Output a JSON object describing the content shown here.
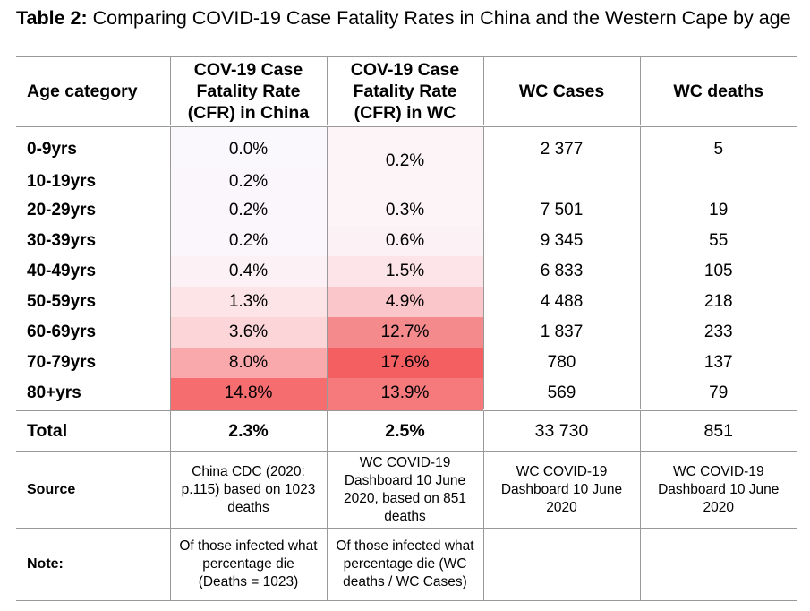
{
  "caption": {
    "bold": "Table 2:",
    "text": " Comparing COVID-19 Case Fatality Rates in China and the Western Cape by age"
  },
  "headers": {
    "age": "Age category",
    "china": "COV-19 Case Fatality Rate (CFR) in China",
    "wc": "COV-19 Case Fatality Rate (CFR) in WC",
    "cases": "WC Cases",
    "deaths": "WC deaths"
  },
  "rows": [
    {
      "age": "0-9yrs",
      "china": "0.0%",
      "wc": "0.2%",
      "cases": "2 377",
      "deaths": "5"
    },
    {
      "age": "10-19yrs",
      "china": "0.2%",
      "wc": "",
      "cases": "",
      "deaths": ""
    },
    {
      "age": "20-29yrs",
      "china": "0.2%",
      "wc": "0.3%",
      "cases": "7 501",
      "deaths": "19"
    },
    {
      "age": "30-39yrs",
      "china": "0.2%",
      "wc": "0.6%",
      "cases": "9 345",
      "deaths": "55"
    },
    {
      "age": "40-49yrs",
      "china": "0.4%",
      "wc": "1.5%",
      "cases": "6 833",
      "deaths": "105"
    },
    {
      "age": "50-59yrs",
      "china": "1.3%",
      "wc": "4.9%",
      "cases": "4 488",
      "deaths": "218"
    },
    {
      "age": "60-69yrs",
      "china": "3.6%",
      "wc": "12.7%",
      "cases": "1 837",
      "deaths": "233"
    },
    {
      "age": "70-79yrs",
      "china": "8.0%",
      "wc": "17.6%",
      "cases": "780",
      "deaths": "137"
    },
    {
      "age": "80+yrs",
      "china": "14.8%",
      "wc": "13.9%",
      "cases": "569",
      "deaths": "79"
    }
  ],
  "heat_colors": {
    "china": [
      "#fbf8fd",
      "#fbf6fb",
      "#fbf6fb",
      "#fbf6fb",
      "#fcf2f5",
      "#fde4e7",
      "#fcd5d8",
      "#f9a9ab",
      "#f56d6f"
    ],
    "wc": [
      "#fcf4f7",
      "#fcf4f7",
      "#fcf1f4",
      "#fde4e8",
      "#fbc6c9",
      "#f48a8c",
      "#f45f62",
      "#f6797c"
    ]
  },
  "total": {
    "label": "Total",
    "china": "2.3%",
    "wc": "2.5%",
    "cases": "33 730",
    "deaths": "851"
  },
  "source": {
    "label": "Source",
    "china": "China CDC (2020: p.115) based on 1023 deaths",
    "wc": "WC COVID-19 Dashboard 10 June 2020, based on 851 deaths",
    "cases": "WC COVID-19 Dashboard 10 June 2020",
    "deaths": "WC COVID-19 Dashboard 10 June 2020"
  },
  "note": {
    "label": "Note:",
    "china": "Of those infected what percentage die (Deaths = 1023)",
    "wc": "Of those infected what percentage die (WC deaths / WC Cases)"
  }
}
